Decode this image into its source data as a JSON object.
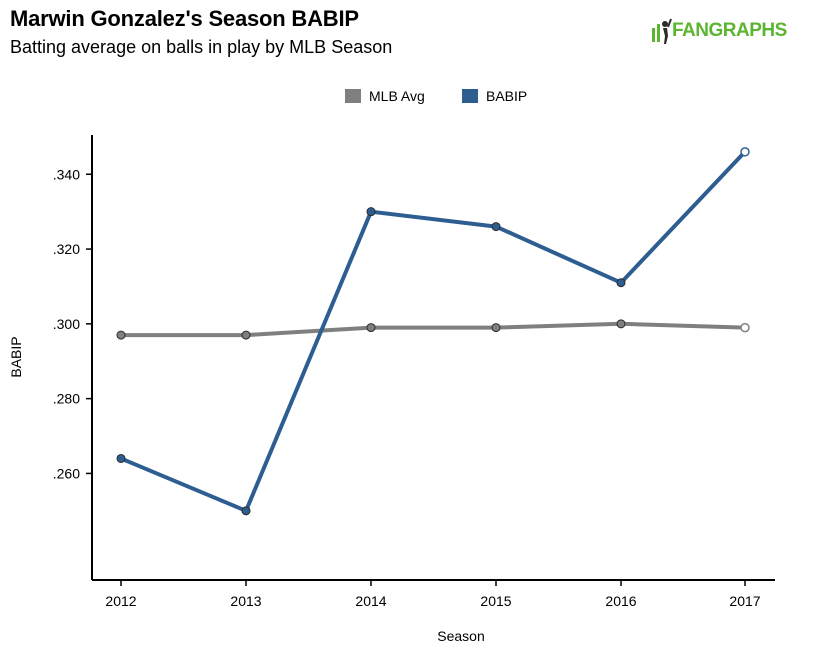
{
  "header": {
    "title": "Marwin Gonzalez's Season BABIP",
    "subtitle": "Batting average on balls in play by MLB Season",
    "logo_text": "FANGRAPHS"
  },
  "legend": [
    {
      "name": "MLB Avg",
      "color": "#7f7f7f"
    },
    {
      "name": "BABIP",
      "color": "#2e5e91"
    }
  ],
  "chart_data": {
    "type": "line",
    "title": "Marwin Gonzalez's Season BABIP",
    "subtitle": "Batting average on balls in play by MLB Season",
    "xlabel": "Season",
    "ylabel": "BABIP",
    "categories": [
      "2012",
      "2013",
      "2014",
      "2015",
      "2016",
      "2017"
    ],
    "y_ticks": [
      0.26,
      0.28,
      0.3,
      0.32,
      0.34
    ],
    "y_tick_labels": [
      ".260",
      ".280",
      ".300",
      ".320",
      ".340"
    ],
    "ylim": [
      0.2315,
      0.3505
    ],
    "grid": false,
    "legend_position": "top-center",
    "series": [
      {
        "name": "MLB Avg",
        "color": "#7f7f7f",
        "values": [
          0.297,
          0.297,
          0.299,
          0.299,
          0.3,
          0.299
        ]
      },
      {
        "name": "BABIP",
        "color": "#2e5e91",
        "values": [
          0.264,
          0.25,
          0.33,
          0.326,
          0.311,
          0.346
        ]
      }
    ],
    "open_marker_last_point": true
  }
}
